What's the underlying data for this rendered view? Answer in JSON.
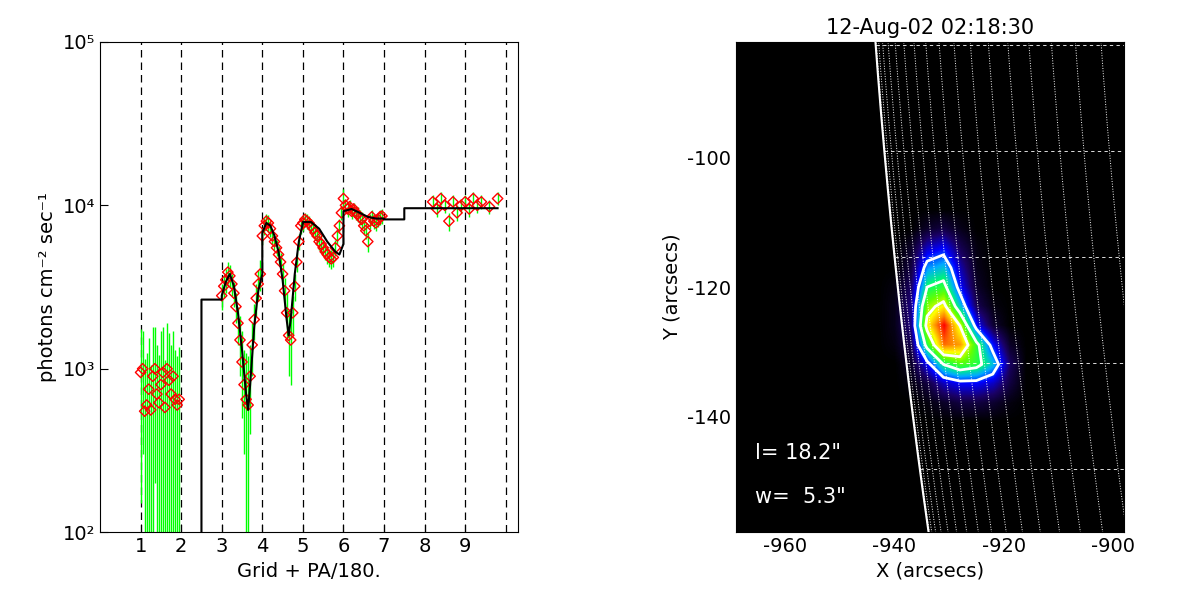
{
  "chart_data": [
    {
      "type": "scatter",
      "xlabel": "Grid + PA/180.",
      "ylabel": "photons cm⁻² sec⁻¹",
      "log": "y",
      "xlim": [
        0,
        10.3
      ],
      "ylim": [
        100,
        100000
      ],
      "xticks": [
        1,
        2,
        3,
        4,
        5,
        6,
        7,
        8,
        9
      ],
      "yticks": [
        {
          "value": 100,
          "label": "10²"
        },
        {
          "value": 1000,
          "label": "10³"
        },
        {
          "value": 10000,
          "label": "10⁴"
        },
        {
          "value": 100000,
          "label": "10⁵"
        }
      ],
      "dividers": [
        1,
        2,
        3,
        4,
        5,
        6,
        7,
        8,
        9,
        10
      ],
      "series": [
        {
          "type": "scatter",
          "color": "#ff0000",
          "marker": "diamond",
          "x": [
            1.0,
            1.05,
            1.1,
            1.15,
            1.2,
            1.25,
            1.3,
            1.35,
            1.4,
            1.45,
            1.5,
            1.55,
            1.6,
            1.65,
            1.7,
            1.75,
            1.8,
            1.85,
            1.9,
            1.95,
            3.0,
            3.05,
            3.1,
            3.15,
            3.2,
            3.25,
            3.3,
            3.35,
            3.4,
            3.45,
            3.5,
            3.55,
            3.6,
            3.65,
            3.7,
            3.75,
            3.8,
            3.85,
            3.9,
            3.95,
            4.0,
            4.05,
            4.1,
            4.15,
            4.2,
            4.25,
            4.3,
            4.35,
            4.4,
            4.45,
            4.5,
            4.55,
            4.6,
            4.65,
            4.7,
            4.75,
            4.8,
            4.85,
            4.9,
            4.95,
            5.0,
            5.05,
            5.1,
            5.15,
            5.2,
            5.25,
            5.3,
            5.35,
            5.4,
            5.45,
            5.5,
            5.55,
            5.6,
            5.65,
            5.7,
            5.75,
            5.8,
            5.85,
            5.9,
            5.95,
            6.0,
            6.05,
            6.1,
            6.15,
            6.2,
            6.25,
            6.3,
            6.35,
            6.4,
            6.45,
            6.5,
            6.55,
            6.6,
            6.65,
            6.7,
            6.75,
            6.8,
            6.85,
            6.9,
            6.95,
            8.2,
            8.3,
            8.4,
            8.5,
            8.6,
            8.7,
            8.8,
            8.9,
            9.0,
            9.1,
            9.2,
            9.3,
            9.4,
            9.6,
            9.8
          ],
          "values": [
            950,
            1000,
            550,
            600,
            750,
            560,
            900,
            1000,
            700,
            620,
            800,
            950,
            580,
            1000,
            850,
            700,
            900,
            650,
            600,
            650,
            2800,
            3200,
            3500,
            3900,
            3700,
            3300,
            2900,
            2400,
            1900,
            1500,
            1100,
            800,
            650,
            600,
            900,
            1400,
            2000,
            2700,
            3300,
            3800,
            6500,
            7500,
            8000,
            7800,
            7200,
            6500,
            6000,
            5500,
            5000,
            4500,
            3800,
            3000,
            2200,
            1600,
            1500,
            2200,
            3200,
            4500,
            6000,
            7500,
            7800,
            8200,
            8000,
            7800,
            7500,
            7200,
            6800,
            6500,
            6000,
            5800,
            5500,
            5200,
            5000,
            4800,
            4700,
            4800,
            5500,
            6500,
            7500,
            9000,
            11000,
            10000,
            9500,
            9800,
            9200,
            9500,
            9000,
            8800,
            8500,
            8200,
            7500,
            7000,
            6000,
            8000,
            8500,
            8000,
            7800,
            8200,
            8500,
            8600,
            10500,
            9500,
            11000,
            10000,
            8000,
            10500,
            9000,
            10000,
            10500,
            9500,
            11000,
            10000,
            10500,
            9800,
            11000
          ],
          "errors": [
            800,
            700,
            600,
            650,
            800,
            500,
            900,
            800,
            700,
            600,
            900,
            850,
            550,
            900,
            800,
            700,
            800,
            650,
            600,
            700,
            500,
            500,
            600,
            600,
            600,
            500,
            500,
            500,
            500,
            600,
            600,
            500,
            600,
            600,
            500,
            500,
            500,
            600,
            700,
            800,
            800,
            900,
            900,
            900,
            800,
            700,
            700,
            600,
            600,
            600,
            600,
            600,
            700,
            700,
            700,
            600,
            600,
            600,
            700,
            800,
            800,
            800,
            800,
            800,
            700,
            700,
            700,
            700,
            700,
            700,
            600,
            600,
            600,
            600,
            600,
            600,
            600,
            700,
            700,
            900,
            1500,
            1000,
            1000,
            1000,
            900,
            900,
            900,
            900,
            900,
            900,
            800,
            800,
            800,
            800,
            900,
            800,
            800,
            800,
            900,
            900,
            1000,
            1000,
            1000,
            1000,
            1000,
            1000,
            1000,
            1000,
            1000,
            1000,
            1000,
            1000,
            1000,
            1000,
            1000
          ]
        },
        {
          "type": "line",
          "color": "#000000",
          "line_style": "solid",
          "x": [
            2.5,
            2.5,
            3.0,
            3.0,
            3.1,
            3.2,
            3.3,
            3.4,
            3.5,
            3.6,
            3.65,
            3.7,
            3.8,
            3.9,
            4.0,
            4.0,
            4.1,
            4.2,
            4.3,
            4.4,
            4.5,
            4.6,
            4.65,
            4.7,
            4.8,
            4.9,
            5.0,
            5.0,
            5.2,
            5.4,
            5.6,
            5.8,
            5.9,
            6.0,
            6.0,
            6.2,
            6.4,
            6.6,
            6.8,
            7.0,
            7.0,
            7.5,
            7.5,
            9.8
          ],
          "values": [
            100,
            2650,
            2650,
            2800,
            3400,
            3800,
            3200,
            2200,
            1300,
            700,
            560,
            800,
            1800,
            3000,
            3800,
            6800,
            7800,
            7500,
            6500,
            5200,
            3500,
            2000,
            1600,
            2000,
            3800,
            6000,
            7800,
            7900,
            7900,
            7200,
            6000,
            5200,
            5000,
            5800,
            9200,
            9500,
            9000,
            8500,
            8300,
            8300,
            8200,
            8200,
            9600,
            9600
          ]
        }
      ]
    },
    {
      "type": "image",
      "title": "12-Aug-02 02:18:30",
      "xlabel": "X (arcsecs)",
      "ylabel": "Y (arcsecs)",
      "xlim": [
        -969,
        -898
      ],
      "ylim": [
        -158,
        -82
      ],
      "xticks": [
        -960,
        -940,
        -920,
        -900
      ],
      "yticks": [
        -140,
        -120,
        -100
      ],
      "zlim": [
        0,
        100
      ],
      "cells_x": [
        -943,
        -940,
        -937,
        -934,
        -931,
        -928,
        -925,
        -922,
        -919,
        -916
      ],
      "cells_y": [
        -108,
        -111,
        -114,
        -117,
        -120,
        -123,
        -126,
        -129,
        -132,
        -135,
        -138,
        -141
      ],
      "cells": [
        [
          0,
          0,
          0,
          0,
          0,
          0,
          0,
          0,
          0,
          0
        ],
        [
          0,
          0,
          0,
          5,
          8,
          3,
          0,
          0,
          0,
          0
        ],
        [
          0,
          0,
          5,
          20,
          25,
          10,
          2,
          0,
          0,
          0
        ],
        [
          0,
          0,
          8,
          35,
          40,
          18,
          3,
          0,
          0,
          0
        ],
        [
          0,
          2,
          12,
          50,
          55,
          25,
          5,
          0,
          0,
          0
        ],
        [
          0,
          3,
          15,
          65,
          75,
          40,
          10,
          2,
          0,
          0
        ],
        [
          0,
          3,
          15,
          75,
          100,
          70,
          25,
          6,
          0,
          0
        ],
        [
          0,
          2,
          10,
          55,
          90,
          85,
          55,
          25,
          5,
          0
        ],
        [
          0,
          0,
          5,
          25,
          50,
          60,
          55,
          40,
          12,
          0
        ],
        [
          0,
          0,
          2,
          8,
          20,
          25,
          25,
          20,
          8,
          0
        ],
        [
          0,
          0,
          0,
          2,
          5,
          8,
          8,
          6,
          2,
          0
        ],
        [
          0,
          0,
          0,
          0,
          0,
          0,
          0,
          0,
          0,
          0
        ]
      ],
      "contour_levels": [
        30,
        50,
        70
      ],
      "limb_radius": 947,
      "grid_spacing": 1,
      "annotations": [
        "l= 18.2\"",
        "w=  5.3\""
      ]
    }
  ]
}
